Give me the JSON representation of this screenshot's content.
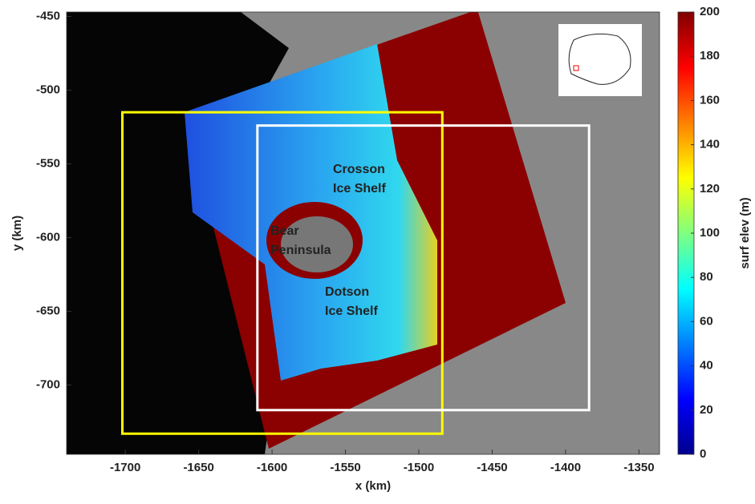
{
  "chart_data": {
    "type": "image",
    "xlabel": "x (km)",
    "ylabel": "y (km)",
    "xlim": [
      -1740,
      -1336
    ],
    "ylim": [
      -747,
      -447
    ],
    "xticks": [
      -1700,
      -1650,
      -1600,
      -1550,
      -1500,
      -1450,
      -1400,
      -1350
    ],
    "yticks": [
      -700,
      -650,
      -600,
      -550,
      -500,
      -450
    ],
    "colorbar": {
      "label": "surf elev (m)",
      "lim": [
        0,
        200
      ],
      "ticks": [
        0,
        20,
        40,
        60,
        80,
        100,
        120,
        140,
        160,
        180,
        200
      ],
      "colormap": "jet"
    },
    "boxes": [
      {
        "color": "#ffff00",
        "xlim": [
          -1702,
          -1484
        ],
        "ylim": [
          -733,
          -515
        ]
      },
      {
        "color": "#ffffff",
        "xlim": [
          -1610,
          -1384
        ],
        "ylim": [
          -717,
          -524
        ]
      }
    ],
    "annotations": [
      {
        "lines": [
          "Crosson",
          "Ice Shelf"
        ],
        "color": "#0b1e3c"
      },
      {
        "lines": [
          "Bear",
          "Peninsula"
        ],
        "color": "#ffffff"
      },
      {
        "lines": [
          "Dotson",
          "Ice Shelf"
        ],
        "color": "#0b1e3c"
      }
    ]
  }
}
